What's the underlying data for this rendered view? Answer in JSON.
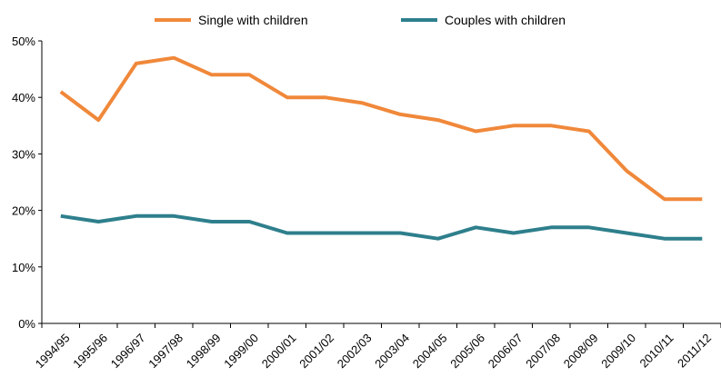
{
  "chart_data": {
    "type": "line",
    "title": "",
    "xlabel": "",
    "ylabel": "",
    "categories": [
      "1994/95",
      "1995/96",
      "1996/97",
      "1997/98",
      "1998/99",
      "1999/00",
      "2000/01",
      "2001/02",
      "2002/03",
      "2003/04",
      "2004/05",
      "2005/06",
      "2006/07",
      "2007/08",
      "2008/09",
      "2009/10",
      "2010/11",
      "2011/12"
    ],
    "ylim": [
      0,
      50
    ],
    "yticks": [
      0,
      10,
      20,
      30,
      40,
      50
    ],
    "ytick_labels": [
      "0%",
      "10%",
      "20%",
      "30%",
      "40%",
      "50%"
    ],
    "grid": false,
    "legend_position": "top-center",
    "series": [
      {
        "name": "Single with children",
        "color": "#F0883A",
        "values": [
          41,
          36,
          46,
          47,
          44,
          44,
          40,
          40,
          39,
          37,
          36,
          34,
          35,
          35,
          34,
          27,
          22,
          22
        ]
      },
      {
        "name": "Couples with children",
        "color": "#2E7F8C",
        "values": [
          19,
          18,
          19,
          19,
          18,
          18,
          16,
          16,
          16,
          16,
          15,
          17,
          16,
          17,
          17,
          16,
          15,
          15
        ]
      }
    ]
  }
}
